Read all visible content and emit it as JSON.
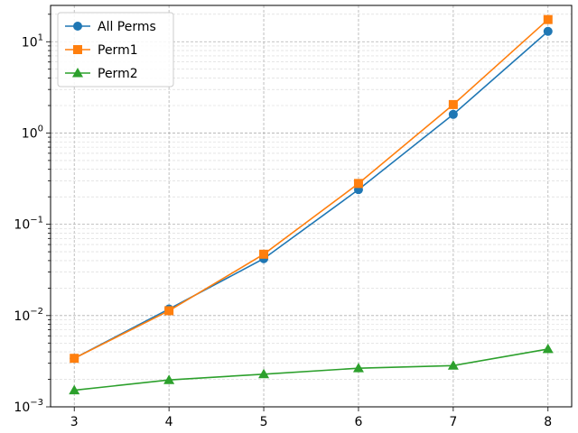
{
  "chart_data": {
    "type": "line",
    "title": "",
    "xlabel": "",
    "ylabel": "",
    "x": [
      3,
      4,
      5,
      6,
      7,
      8
    ],
    "xlim": [
      2.75,
      8.25
    ],
    "ylim": [
      0.001,
      25
    ],
    "yscale": "log",
    "x_ticks": [
      "3",
      "4",
      "5",
      "6",
      "7",
      "8"
    ],
    "y_ticks": [
      {
        "value": 0.001,
        "base": "10",
        "exp": "−3"
      },
      {
        "value": 0.01,
        "base": "10",
        "exp": "−2"
      },
      {
        "value": 0.1,
        "base": "10",
        "exp": "−1"
      },
      {
        "value": 1,
        "base": "10",
        "exp": "0"
      },
      {
        "value": 10,
        "base": "10",
        "exp": "1"
      }
    ],
    "grid": true,
    "grid_minor": true,
    "legend_position": "top-left",
    "series": [
      {
        "name": "All Perms",
        "color": "#1f77b4",
        "marker": "circle",
        "values": [
          0.0034,
          0.0118,
          0.042,
          0.24,
          1.6,
          13.0
        ]
      },
      {
        "name": "Perm1",
        "color": "#ff7f0e",
        "marker": "square",
        "values": [
          0.0034,
          0.0113,
          0.047,
          0.28,
          2.05,
          17.5
        ]
      },
      {
        "name": "Perm2",
        "color": "#2ca02c",
        "marker": "triangle",
        "values": [
          0.00152,
          0.00197,
          0.00228,
          0.00265,
          0.00283,
          0.0043
        ]
      }
    ]
  }
}
